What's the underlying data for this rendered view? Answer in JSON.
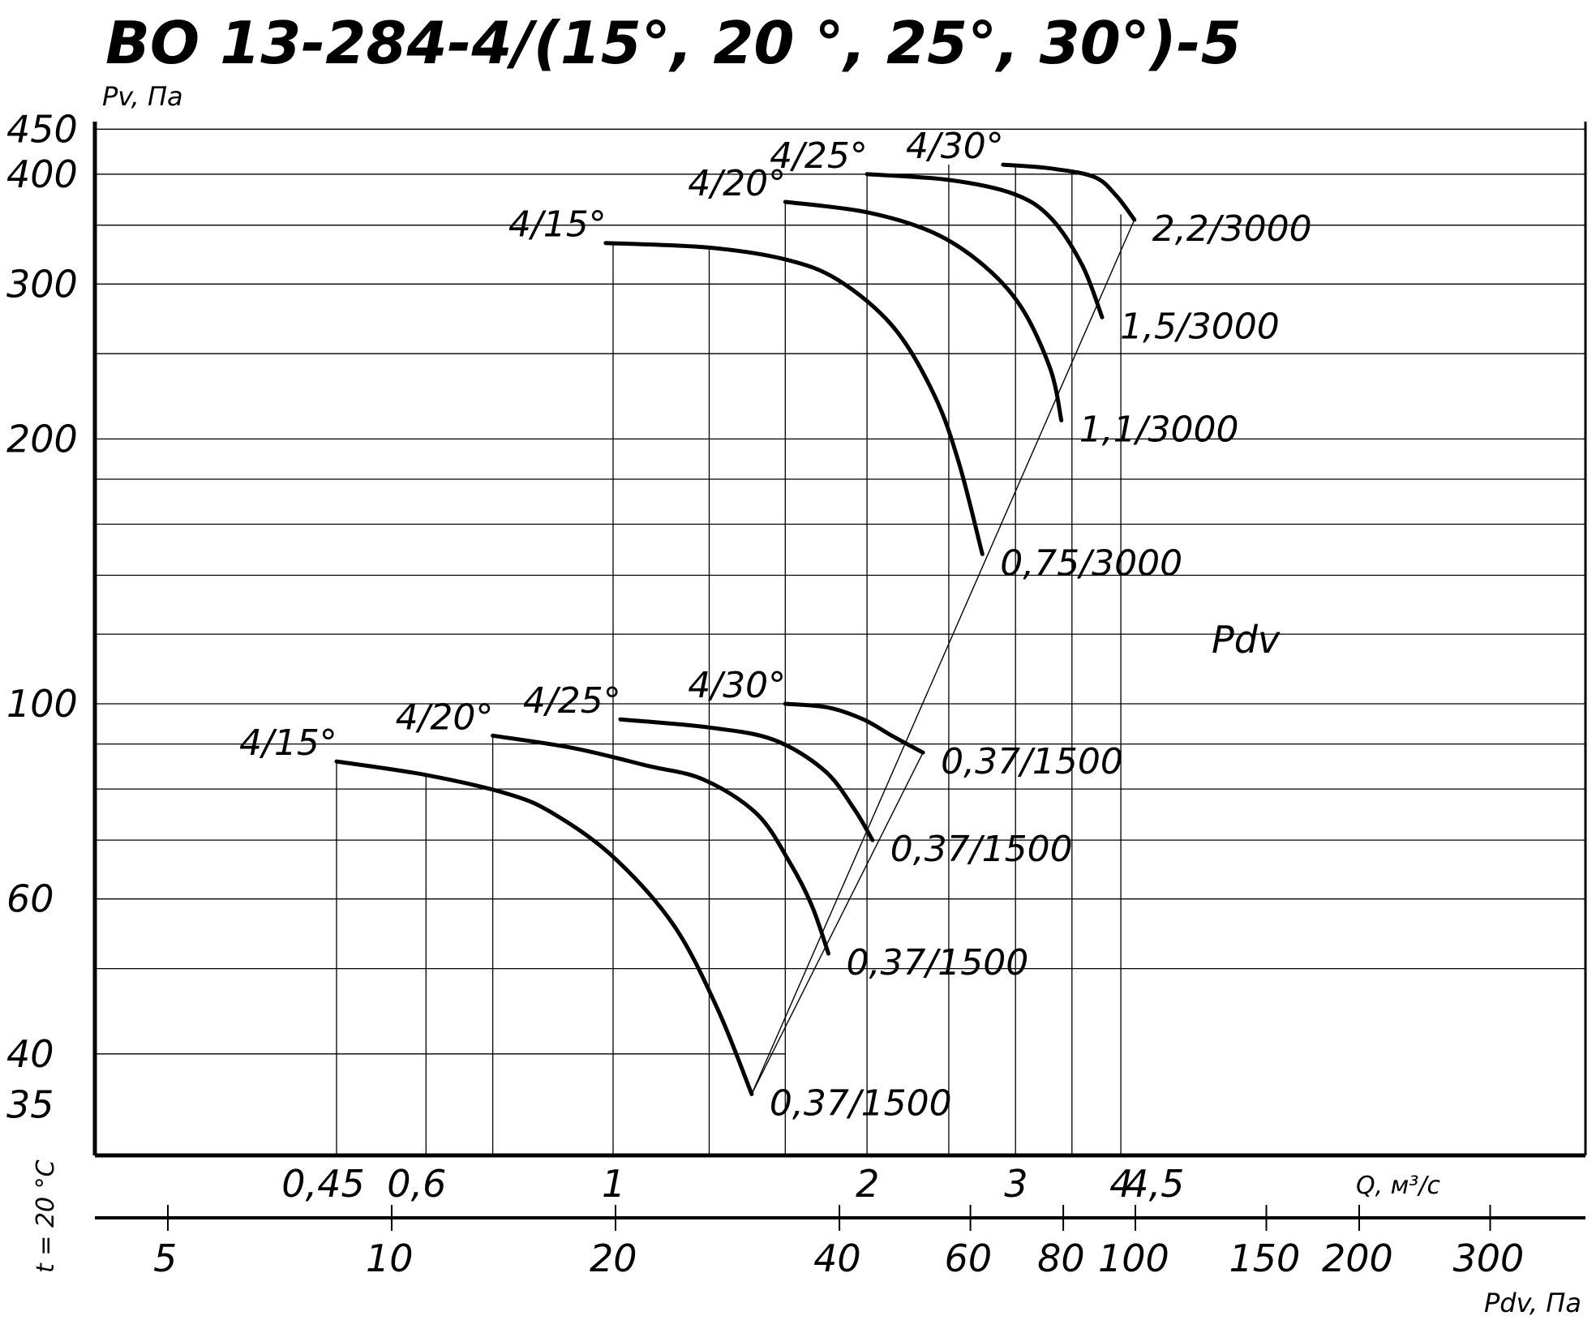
{
  "chart_data": {
    "type": "line",
    "title": "ВО 13-284-4/(15°, 20 °, 25°, 30°)-5",
    "ylabel": "Pv, Па",
    "xlabel": "Q, м³/с",
    "x2label": "Pdv, Па",
    "side_label": "t = 20 °C",
    "pdv_label": "Pdv",
    "x_scale": "log",
    "y_scale": "log",
    "xlim": [
      0.4,
      4.6
    ],
    "ylim": [
      30,
      470
    ],
    "y_ticks": [
      {
        "value": 450,
        "label": "450"
      },
      {
        "value": 400,
        "label": "400"
      },
      {
        "value": 300,
        "label": "300"
      },
      {
        "value": 200,
        "label": "200"
      },
      {
        "value": 100,
        "label": "100"
      },
      {
        "value": 60,
        "label": "60"
      },
      {
        "value": 40,
        "label": "40"
      },
      {
        "value": 35,
        "label": "35"
      }
    ],
    "y_grid": [
      450,
      400,
      350,
      300,
      250,
      200,
      180,
      160,
      140,
      120,
      100,
      90,
      80,
      70,
      60,
      50,
      40
    ],
    "x_ticks": [
      {
        "value": 0.45,
        "label": "0,45"
      },
      {
        "value": 0.6,
        "label": "0,6"
      },
      {
        "value": 1,
        "label": "1"
      },
      {
        "value": 2,
        "label": "2"
      },
      {
        "value": 3,
        "label": "3"
      },
      {
        "value": 4,
        "label": "4"
      },
      {
        "value": 4.5,
        "label": "4,5"
      }
    ],
    "x2_ticks": [
      {
        "value": 5,
        "label": "5"
      },
      {
        "value": 10,
        "label": "10"
      },
      {
        "value": 20,
        "label": "20"
      },
      {
        "value": 40,
        "label": "40"
      },
      {
        "value": 60,
        "label": "60"
      },
      {
        "value": 80,
        "label": "80"
      },
      {
        "value": 100,
        "label": "100"
      },
      {
        "value": 150,
        "label": "150"
      },
      {
        "value": 200,
        "label": "200"
      },
      {
        "value": 300,
        "label": "300"
      }
    ],
    "x_grid_lower": [
      0.47,
      0.6,
      0.72,
      1.0,
      1.3,
      1.6,
      2.0
    ],
    "x_grid_upper": [
      1.0,
      1.3,
      1.6,
      2.0,
      2.5,
      3.0,
      3.5,
      4.0
    ],
    "pdv_lines": [
      [
        [
          1.46,
          36.0
        ],
        [
          2.33,
          88.0
        ]
      ],
      [
        [
          1.46,
          36.0
        ],
        [
          4.15,
          355.0
        ]
      ]
    ],
    "series": [
      {
        "label": "4/15°",
        "motor": "0,37/1500",
        "points": [
          [
            0.47,
            86.0
          ],
          [
            0.6,
            83.0
          ],
          [
            0.75,
            79.0
          ],
          [
            0.85,
            75.0
          ],
          [
            1.0,
            67.0
          ],
          [
            1.18,
            56.0
          ],
          [
            1.33,
            45.0
          ],
          [
            1.46,
            36.0
          ]
        ]
      },
      {
        "label": "4/20°",
        "motor": "0,37/1500",
        "points": [
          [
            0.72,
            92.0
          ],
          [
            0.9,
            89.0
          ],
          [
            1.1,
            85.0
          ],
          [
            1.28,
            82.0
          ],
          [
            1.48,
            75.0
          ],
          [
            1.62,
            66.0
          ],
          [
            1.72,
            59.0
          ],
          [
            1.8,
            52.0
          ]
        ]
      },
      {
        "label": "4/25°",
        "motor": "0,37/1500",
        "points": [
          [
            1.02,
            96.0
          ],
          [
            1.3,
            94.0
          ],
          [
            1.55,
            91.0
          ],
          [
            1.78,
            84.0
          ],
          [
            1.93,
            76.0
          ],
          [
            2.03,
            70.0
          ]
        ]
      },
      {
        "label": "4/30°",
        "motor": "0,37/1500",
        "points": [
          [
            1.6,
            100.0
          ],
          [
            1.8,
            99.0
          ],
          [
            1.98,
            96.0
          ],
          [
            2.14,
            92.0
          ],
          [
            2.33,
            88.0
          ]
        ]
      },
      {
        "label": "4/15°",
        "motor": "0,75/3000",
        "points": [
          [
            0.98,
            334.0
          ],
          [
            1.3,
            330.0
          ],
          [
            1.6,
            320.0
          ],
          [
            1.85,
            303.0
          ],
          [
            2.15,
            268.0
          ],
          [
            2.4,
            225.0
          ],
          [
            2.57,
            188.0
          ],
          [
            2.74,
            148.0
          ]
        ]
      },
      {
        "label": "4/20°",
        "motor": "1,1/3000",
        "points": [
          [
            1.6,
            372.0
          ],
          [
            2.0,
            362.0
          ],
          [
            2.4,
            343.0
          ],
          [
            2.75,
            315.0
          ],
          [
            3.05,
            282.0
          ],
          [
            3.3,
            240.0
          ],
          [
            3.4,
            210.0
          ]
        ]
      },
      {
        "label": "4/25°",
        "motor": "1,5/3000",
        "points": [
          [
            2.0,
            400.0
          ],
          [
            2.5,
            394.0
          ],
          [
            2.98,
            380.0
          ],
          [
            3.3,
            357.0
          ],
          [
            3.6,
            315.0
          ],
          [
            3.8,
            275.0
          ]
        ]
      },
      {
        "label": "4/30°",
        "motor": "2,2/3000",
        "points": [
          [
            2.9,
            410.0
          ],
          [
            3.3,
            406.0
          ],
          [
            3.72,
            397.0
          ],
          [
            3.95,
            378.0
          ],
          [
            4.15,
            355.0
          ]
        ]
      }
    ]
  }
}
